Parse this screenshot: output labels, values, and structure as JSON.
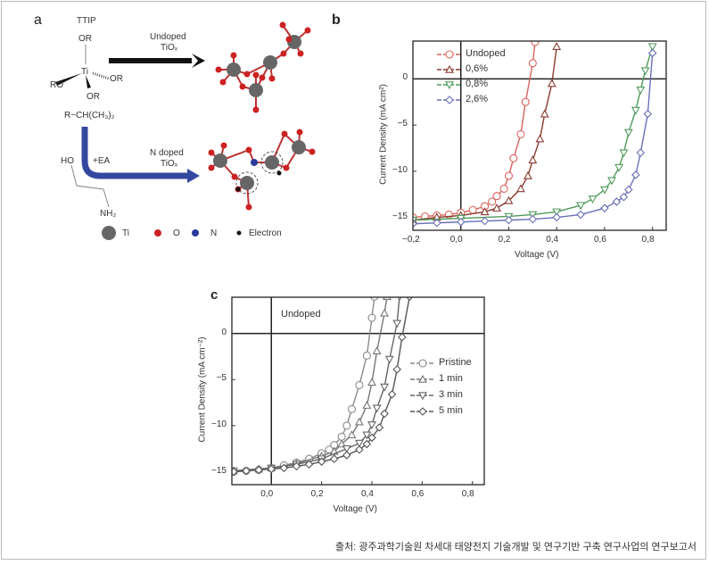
{
  "panel_a": {
    "label": "a",
    "ttip": "TTIP",
    "or_top": "OR",
    "ti": "Ti",
    "or_right": "OR",
    "ro_left": "RO",
    "or_bottom": "OR",
    "r_group": "R−CH(CH₃)₂",
    "undoped_arrow": "Undoped",
    "undoped_tiox": "TiOₓ",
    "ndoped_arrow": "N doped",
    "ndoped_tiox": "TiOₓ",
    "ho": "HO",
    "ea": "+EA",
    "nh2": "NH₂",
    "legend": [
      {
        "label": "Ti",
        "color": "#6a6a6a"
      },
      {
        "label": "O",
        "color": "#cc2222"
      },
      {
        "label": "N",
        "color": "#2a3a9a"
      },
      {
        "label": "Electron",
        "color": "#111111"
      }
    ],
    "arrow_colors": {
      "undoped": "#111111",
      "ndoped": "#3548a0"
    }
  },
  "chart_data": [
    {
      "panel_label": "b",
      "type": "line",
      "xlabel": "Voltage (V)",
      "ylabel": "Current Density (mA cm²)",
      "xlim": [
        -0.2,
        0.857
      ],
      "ylim": [
        -16.4,
        4.1
      ],
      "xticks": [
        "−0,2",
        "0,0",
        "0,2",
        "0,4",
        "0,6",
        "0,8"
      ],
      "xtick_values": [
        -0.2,
        0,
        0.2,
        0.4,
        0.6,
        0.8
      ],
      "yticks": [
        "0",
        "−5",
        "−10",
        "−15"
      ],
      "ytick_values": [
        0,
        -5,
        -10,
        -15
      ],
      "grid": false,
      "legend_placement": "top-left",
      "series": [
        {
          "name": "Undoped",
          "marker": "circle",
          "color": "#d9635a",
          "x": [
            -0.2,
            -0.15,
            -0.1,
            -0.05,
            0,
            0.05,
            0.1,
            0.13,
            0.15,
            0.18,
            0.2,
            0.22,
            0.25,
            0.27,
            0.3,
            0.31
          ],
          "y": [
            -15,
            -14.9,
            -14.8,
            -14.7,
            -14.5,
            -14.2,
            -13.8,
            -13.3,
            -12.7,
            -11.9,
            -10.5,
            -8.6,
            -6,
            -2.5,
            1.7,
            4
          ]
        },
        {
          "name": "0,6%",
          "marker": "triangle-up",
          "color": "#8a3a30",
          "x": [
            -0.2,
            -0.1,
            0,
            0.1,
            0.15,
            0.2,
            0.25,
            0.28,
            0.3,
            0.33,
            0.35,
            0.38,
            0.4
          ],
          "y": [
            -15.3,
            -15,
            -14.8,
            -14.4,
            -14,
            -13.2,
            -11.9,
            -10.5,
            -8.8,
            -6.5,
            -3.8,
            -0.5,
            3.5
          ]
        },
        {
          "name": "0,8%",
          "marker": "triangle-down",
          "color": "#4f9a5c",
          "x": [
            -0.2,
            0,
            0.2,
            0.3,
            0.4,
            0.5,
            0.55,
            0.6,
            0.63,
            0.66,
            0.68,
            0.7,
            0.73,
            0.75,
            0.77,
            0.8
          ],
          "y": [
            -15.3,
            -15.1,
            -14.9,
            -14.7,
            -14.4,
            -13.7,
            -13,
            -12,
            -11,
            -9.6,
            -8,
            -5.8,
            -3.4,
            -1.2,
            0.9,
            3.5
          ]
        },
        {
          "name": "2,6%",
          "marker": "diamond",
          "color": "#6a6fb8",
          "x": [
            -0.2,
            -0.1,
            0,
            0.1,
            0.2,
            0.3,
            0.4,
            0.5,
            0.6,
            0.65,
            0.68,
            0.7,
            0.73,
            0.75,
            0.78,
            0.8
          ],
          "y": [
            -15.7,
            -15.6,
            -15.5,
            -15.4,
            -15.3,
            -15.2,
            -15,
            -14.7,
            -14,
            -13.3,
            -12.8,
            -12,
            -10.4,
            -8,
            -3.8,
            2.8
          ]
        }
      ]
    },
    {
      "panel_label": "c",
      "type": "line",
      "annotation": "Undoped",
      "xlabel": "Voltage (V)",
      "ylabel": "Current Density (mA cm⁻²)",
      "xlim": [
        -0.157,
        0.847
      ],
      "ylim": [
        -16.4,
        3.93
      ],
      "xticks": [
        "0,0",
        "0,2",
        "0,4",
        "0,6",
        "0,8"
      ],
      "xtick_values": [
        0,
        0.2,
        0.4,
        0.6,
        0.8
      ],
      "yticks": [
        "0",
        "−5",
        "−10",
        "−15"
      ],
      "ytick_values": [
        0,
        -5,
        -10,
        -15
      ],
      "grid": false,
      "legend_placement": "right",
      "series": [
        {
          "name": "Pristine",
          "marker": "circle",
          "color": "#8a8a8a",
          "x": [
            -0.15,
            -0.1,
            -0.05,
            0,
            0.05,
            0.1,
            0.15,
            0.2,
            0.23,
            0.25,
            0.28,
            0.3,
            0.32,
            0.35,
            0.38,
            0.4,
            0.41
          ],
          "y": [
            -15,
            -14.9,
            -14.8,
            -14.6,
            -14.3,
            -14,
            -13.6,
            -13,
            -12.6,
            -12.1,
            -11.2,
            -10,
            -8.2,
            -5.6,
            -2.4,
            1.7,
            4
          ]
        },
        {
          "name": "1 min",
          "marker": "triangle-up",
          "color": "#777777",
          "x": [
            -0.15,
            -0.05,
            0,
            0.1,
            0.2,
            0.25,
            0.28,
            0.32,
            0.35,
            0.38,
            0.4,
            0.42,
            0.45,
            0.46
          ],
          "y": [
            -14.9,
            -14.7,
            -14.6,
            -14.1,
            -13.3,
            -12.8,
            -12,
            -11,
            -9.6,
            -7.8,
            -5.3,
            -1.9,
            2.2,
            4
          ]
        },
        {
          "name": "3 min",
          "marker": "triangle-down",
          "color": "#666666",
          "x": [
            -0.15,
            0,
            0.1,
            0.2,
            0.3,
            0.35,
            0.38,
            0.4,
            0.42,
            0.45,
            0.47,
            0.5,
            0.51
          ],
          "y": [
            -14.9,
            -14.6,
            -14.2,
            -13.6,
            -12.5,
            -11.9,
            -11,
            -9.9,
            -8.1,
            -5.8,
            -2.8,
            1.1,
            4
          ]
        },
        {
          "name": "5 min",
          "marker": "diamond",
          "color": "#555555",
          "x": [
            -0.15,
            -0.1,
            -0.05,
            0,
            0.05,
            0.1,
            0.15,
            0.2,
            0.25,
            0.3,
            0.35,
            0.38,
            0.4,
            0.43,
            0.45,
            0.48,
            0.5,
            0.52,
            0.55
          ],
          "y": [
            -15,
            -14.9,
            -14.8,
            -14.7,
            -14.6,
            -14.4,
            -14.2,
            -13.9,
            -13.6,
            -13.2,
            -12.6,
            -12,
            -11.3,
            -10.2,
            -8.7,
            -6.6,
            -3.9,
            -0.4,
            4
          ]
        }
      ]
    }
  ],
  "footer": "출처: 광주과학기술원 차세대 태양전지 기술개발 및 연구기반 구축 연구사업의 연구보고서"
}
